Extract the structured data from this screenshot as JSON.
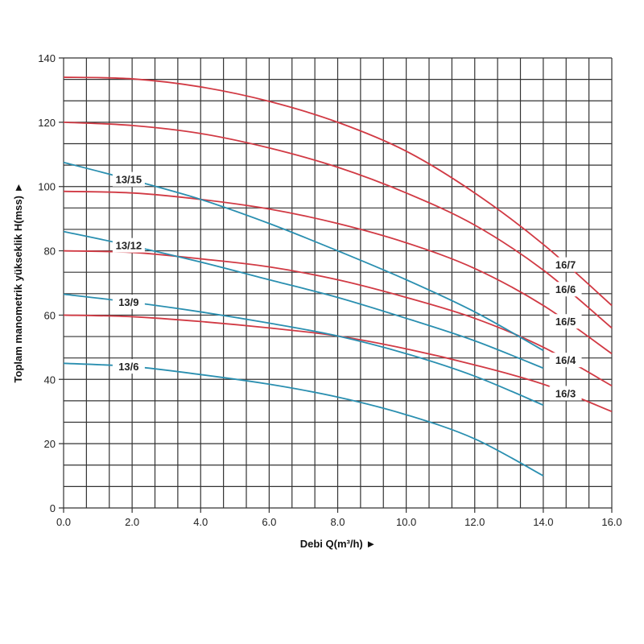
{
  "chart_data": {
    "type": "line",
    "title": "",
    "xlabel": "Debi Q(m³/h) ►",
    "ylabel": "Toplam manometrik yükseklik H(mss) ►",
    "xlim": [
      0,
      16
    ],
    "ylim": [
      0,
      140
    ],
    "x_ticks": [
      "0.0",
      "2.0",
      "4.0",
      "6.0",
      "8.0",
      "10.0",
      "12.0",
      "14.0",
      "16.0"
    ],
    "y_ticks": [
      "0",
      "20",
      "40",
      "60",
      "80",
      "100",
      "120",
      "140"
    ],
    "grid": true,
    "colors": {
      "series_16": "#d13a44",
      "series_13": "#2a8fb0",
      "grid": "#333333"
    },
    "x": [
      0,
      2,
      4,
      6,
      8,
      10,
      12,
      14,
      16
    ],
    "series": [
      {
        "name": "16/7",
        "color": "#d13a44",
        "values": [
          134,
          133.5,
          131,
          126.5,
          120,
          111,
          98,
          82,
          63
        ]
      },
      {
        "name": "16/6",
        "color": "#d13a44",
        "values": [
          120,
          119,
          116.5,
          112,
          106,
          98,
          88,
          74,
          56
        ]
      },
      {
        "name": "16/5",
        "color": "#d13a44",
        "values": [
          98.5,
          98,
          96,
          93,
          88.5,
          82.5,
          74.5,
          63,
          48
        ]
      },
      {
        "name": "16/4",
        "color": "#d13a44",
        "values": [
          80,
          79.5,
          77.5,
          75,
          71,
          65.5,
          59,
          50,
          38
        ]
      },
      {
        "name": "16/3",
        "color": "#d13a44",
        "values": [
          60,
          59.5,
          58,
          56,
          53.5,
          49.5,
          44.5,
          38.5,
          30
        ]
      },
      {
        "name": "13/15",
        "color": "#2a8fb0",
        "values": [
          107.5,
          102,
          96,
          88.5,
          80,
          71,
          61,
          49,
          null
        ]
      },
      {
        "name": "13/12",
        "color": "#2a8fb0",
        "values": [
          86,
          81.5,
          76.5,
          71,
          65.5,
          59,
          52,
          43.5,
          null
        ]
      },
      {
        "name": "13/9",
        "color": "#2a8fb0",
        "values": [
          66.5,
          64,
          61,
          57.5,
          53.5,
          48,
          41,
          32,
          null
        ]
      },
      {
        "name": "13/6",
        "color": "#2a8fb0",
        "values": [
          45,
          44,
          41.5,
          38.5,
          34.5,
          29,
          21.5,
          10,
          null
        ]
      }
    ]
  }
}
